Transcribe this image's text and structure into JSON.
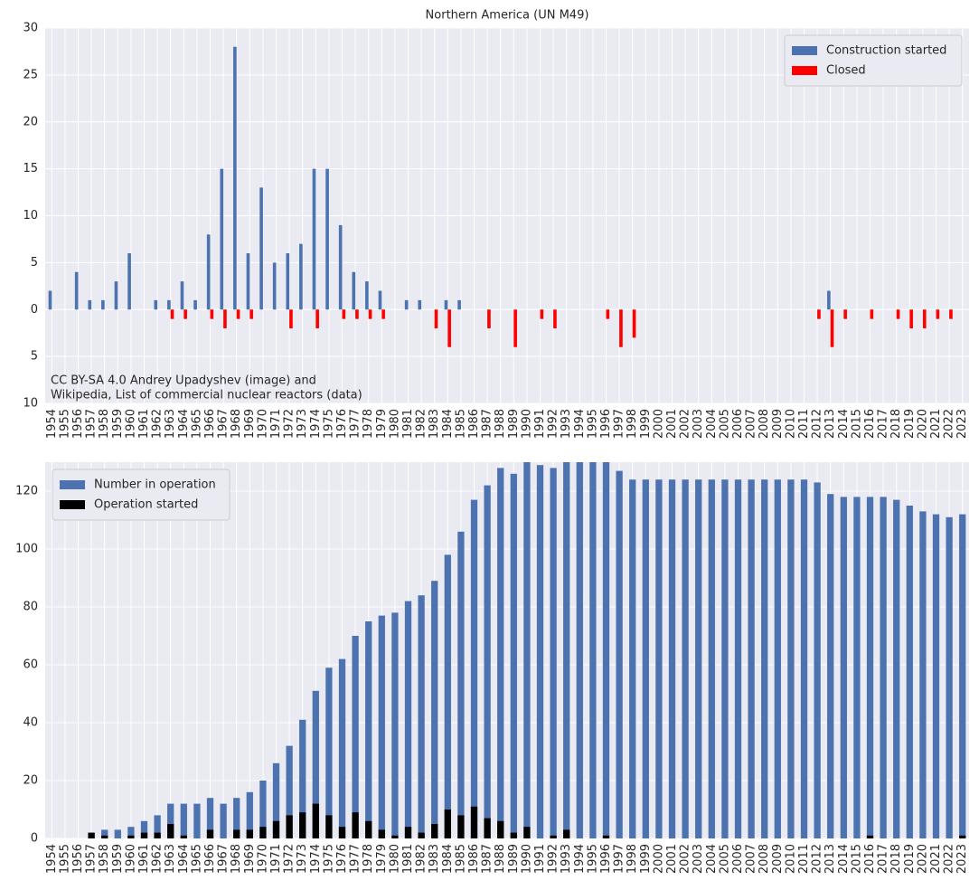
{
  "chart_data": [
    {
      "type": "bar",
      "title": "Northern America (UN M49)",
      "bar_layout": "grouped",
      "categories": [
        "1954",
        "1955",
        "1956",
        "1957",
        "1958",
        "1959",
        "1960",
        "1961",
        "1962",
        "1963",
        "1964",
        "1965",
        "1966",
        "1967",
        "1968",
        "1969",
        "1970",
        "1971",
        "1972",
        "1973",
        "1974",
        "1975",
        "1976",
        "1977",
        "1978",
        "1979",
        "1980",
        "1981",
        "1982",
        "1983",
        "1984",
        "1985",
        "1986",
        "1987",
        "1988",
        "1989",
        "1990",
        "1991",
        "1992",
        "1993",
        "1994",
        "1995",
        "1996",
        "1997",
        "1998",
        "1999",
        "2000",
        "2001",
        "2002",
        "2003",
        "2004",
        "2005",
        "2006",
        "2007",
        "2008",
        "2009",
        "2010",
        "2011",
        "2012",
        "2013",
        "2014",
        "2015",
        "2016",
        "2017",
        "2018",
        "2019",
        "2020",
        "2021",
        "2022",
        "2023"
      ],
      "highlight_categories": [
        "1957",
        "1979",
        "1986",
        "2011"
      ],
      "highlight_color": "#ff0000",
      "series": [
        {
          "name": "Construction started",
          "color": "#4c72b0",
          "values": [
            2,
            0,
            4,
            1,
            1,
            3,
            6,
            0,
            1,
            1,
            3,
            1,
            8,
            15,
            28,
            6,
            13,
            5,
            6,
            7,
            15,
            15,
            9,
            4,
            3,
            2,
            0,
            1,
            1,
            0,
            1,
            1,
            0,
            0,
            0,
            0,
            0,
            0,
            0,
            0,
            0,
            0,
            0,
            0,
            0,
            0,
            0,
            0,
            0,
            0,
            0,
            0,
            0,
            0,
            0,
            0,
            0,
            0,
            0,
            2,
            0,
            0,
            0,
            0,
            0,
            0,
            0,
            0,
            0,
            0
          ]
        },
        {
          "name": "Closed",
          "color": "#ff0000",
          "values": [
            0,
            0,
            0,
            0,
            0,
            0,
            0,
            0,
            0,
            -1,
            -1,
            0,
            -1,
            -2,
            -1,
            -1,
            0,
            0,
            -2,
            0,
            -2,
            0,
            -1,
            -1,
            -1,
            -1,
            0,
            0,
            0,
            -2,
            -4,
            0,
            0,
            -2,
            0,
            -4,
            0,
            -1,
            -2,
            0,
            0,
            0,
            -1,
            -4,
            -3,
            0,
            0,
            0,
            0,
            0,
            0,
            0,
            0,
            0,
            0,
            0,
            0,
            0,
            -1,
            -4,
            -1,
            0,
            -1,
            0,
            -1,
            -2,
            -2,
            -1,
            -1,
            0
          ]
        }
      ],
      "ylim": [
        -10,
        30
      ],
      "yticks": [
        {
          "value": -10,
          "label": "10"
        },
        {
          "value": -5,
          "label": "5"
        },
        0,
        5,
        10,
        15,
        20,
        25,
        30
      ],
      "grid": true,
      "legend": "upper right",
      "annotation": [
        "CC BY-SA 4.0 Andrey Upadyshev (image) and",
        "Wikipedia, List of commercial nuclear reactors (data)"
      ]
    },
    {
      "type": "bar",
      "bar_layout": "overlay",
      "categories": [
        "1954",
        "1955",
        "1956",
        "1957",
        "1958",
        "1959",
        "1960",
        "1961",
        "1962",
        "1963",
        "1964",
        "1965",
        "1966",
        "1967",
        "1968",
        "1969",
        "1970",
        "1971",
        "1972",
        "1973",
        "1974",
        "1975",
        "1976",
        "1977",
        "1978",
        "1979",
        "1980",
        "1981",
        "1982",
        "1983",
        "1984",
        "1985",
        "1986",
        "1987",
        "1988",
        "1989",
        "1990",
        "1991",
        "1992",
        "1993",
        "1994",
        "1995",
        "1996",
        "1997",
        "1998",
        "1999",
        "2000",
        "2001",
        "2002",
        "2003",
        "2004",
        "2005",
        "2006",
        "2007",
        "2008",
        "2009",
        "2010",
        "2011",
        "2012",
        "2013",
        "2014",
        "2015",
        "2016",
        "2017",
        "2018",
        "2019",
        "2020",
        "2021",
        "2022",
        "2023"
      ],
      "highlight_categories": [
        "1957",
        "1979",
        "1986",
        "2011"
      ],
      "highlight_color": "#ff0000",
      "series": [
        {
          "name": "Number in operation",
          "color": "#4c72b0",
          "values": [
            0,
            0,
            0,
            2,
            3,
            3,
            4,
            6,
            8,
            12,
            12,
            12,
            14,
            12,
            14,
            16,
            20,
            26,
            32,
            41,
            51,
            59,
            62,
            70,
            75,
            77,
            78,
            82,
            84,
            89,
            98,
            106,
            117,
            122,
            128,
            126,
            131,
            129,
            128,
            131,
            132,
            132,
            131,
            127,
            124,
            124,
            124,
            124,
            124,
            124,
            124,
            124,
            124,
            124,
            124,
            124,
            124,
            124,
            123,
            119,
            118,
            118,
            118,
            118,
            117,
            115,
            113,
            112,
            111,
            112
          ]
        },
        {
          "name": "Operation started",
          "color": "#000000",
          "values": [
            0,
            0,
            0,
            2,
            1,
            0,
            1,
            2,
            2,
            5,
            1,
            0,
            3,
            0,
            3,
            3,
            4,
            6,
            8,
            9,
            12,
            8,
            4,
            9,
            6,
            3,
            1,
            4,
            2,
            5,
            10,
            8,
            11,
            7,
            6,
            2,
            4,
            0,
            1,
            3,
            0,
            0,
            1,
            0,
            0,
            0,
            0,
            0,
            0,
            0,
            0,
            0,
            0,
            0,
            0,
            0,
            0,
            0,
            0,
            0,
            0,
            0,
            1,
            0,
            0,
            0,
            0,
            0,
            0,
            1
          ]
        }
      ],
      "ylim": [
        0,
        130
      ],
      "yticks": [
        0,
        20,
        40,
        60,
        80,
        100,
        120
      ],
      "grid": true,
      "legend": "upper left"
    }
  ]
}
